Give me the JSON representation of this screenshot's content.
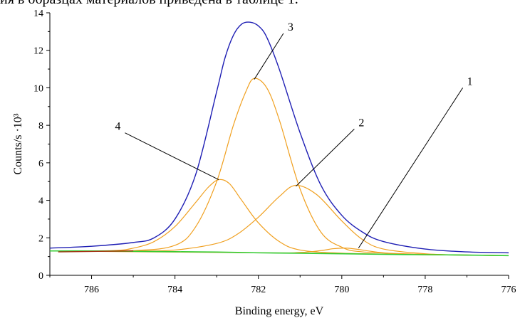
{
  "page": {
    "top_text": "ия в образцах материалов приведена в таблице 1."
  },
  "chart_data": {
    "type": "line",
    "title": "",
    "xlabel": "Binding energy, eV",
    "ylabel": "Counts/s ·10³",
    "xlim": [
      787,
      776
    ],
    "ylim": [
      0,
      14
    ],
    "x_reversed": true,
    "x_ticks": [
      "786",
      "784",
      "782",
      "780",
      "778",
      "776"
    ],
    "y_ticks": [
      "0",
      "2",
      "4",
      "6",
      "8",
      "10",
      "12",
      "14"
    ],
    "grid": false,
    "series": [
      {
        "id": "envelope",
        "name": "",
        "color": "#1f1fb4",
        "x": [
          787,
          786,
          785,
          784.5,
          784,
          783.5,
          783,
          782.8,
          782.6,
          782.4,
          782.2,
          782.0,
          781.8,
          781.5,
          781.0,
          780.5,
          780.0,
          779.5,
          779.0,
          778.0,
          777.0,
          776.0
        ],
        "y": [
          1.45,
          1.55,
          1.75,
          2.0,
          3.0,
          5.4,
          9.8,
          11.6,
          12.8,
          13.4,
          13.5,
          13.3,
          12.7,
          11.0,
          7.6,
          4.8,
          3.2,
          2.3,
          1.8,
          1.4,
          1.25,
          1.2
        ]
      },
      {
        "id": "background",
        "name": "",
        "color": "#33cc33",
        "x": [
          787,
          786,
          785,
          784,
          783,
          782,
          781,
          780,
          779,
          778,
          777,
          776
        ],
        "y": [
          1.3,
          1.3,
          1.28,
          1.26,
          1.24,
          1.2,
          1.18,
          1.15,
          1.12,
          1.1,
          1.08,
          1.05
        ]
      },
      {
        "id": "component-1",
        "name": "",
        "color": "#f0a020",
        "x": [
          787,
          782,
          781,
          780.5,
          780.2,
          779.9,
          779.6,
          779.2,
          778.5,
          777,
          776
        ],
        "y": [
          1.3,
          1.2,
          1.22,
          1.32,
          1.42,
          1.45,
          1.38,
          1.25,
          1.12,
          1.08,
          1.05
        ]
      },
      {
        "id": "component-2",
        "name": "",
        "color": "#f0a020",
        "x": [
          787,
          785,
          784,
          783,
          782.5,
          782,
          781.5,
          781.1,
          780.6,
          780,
          779.5,
          779,
          778,
          777,
          776
        ],
        "y": [
          1.3,
          1.3,
          1.35,
          1.7,
          2.2,
          3.1,
          4.2,
          4.8,
          4.3,
          2.9,
          1.9,
          1.4,
          1.15,
          1.08,
          1.05
        ]
      },
      {
        "id": "component-3",
        "name": "",
        "color": "#f0a020",
        "x": [
          787,
          785,
          784,
          783.5,
          783,
          782.6,
          782.3,
          782.1,
          781.8,
          781.5,
          781,
          780.5,
          780,
          779.5,
          778,
          776
        ],
        "y": [
          1.3,
          1.32,
          1.6,
          2.6,
          5.0,
          8.0,
          9.8,
          10.5,
          10.0,
          8.3,
          4.6,
          2.3,
          1.5,
          1.25,
          1.12,
          1.05
        ]
      },
      {
        "id": "component-4",
        "name": "",
        "color": "#f0a020",
        "x": [
          787,
          785.5,
          785,
          784.5,
          784,
          783.5,
          783.2,
          782.95,
          782.7,
          782.4,
          782,
          781.5,
          781,
          780,
          778,
          776
        ],
        "y": [
          1.3,
          1.32,
          1.45,
          1.8,
          2.6,
          3.9,
          4.7,
          5.1,
          4.9,
          4.0,
          2.8,
          1.8,
          1.35,
          1.18,
          1.1,
          1.05
        ]
      }
    ],
    "annotations": [
      {
        "id": "1",
        "text": "1",
        "from": [
          777.1,
          10.0
        ],
        "to": [
          779.6,
          1.45
        ]
      },
      {
        "id": "2",
        "text": "2",
        "from": [
          779.7,
          7.8
        ],
        "to": [
          781.1,
          4.75
        ]
      },
      {
        "id": "3",
        "text": "3",
        "from": [
          781.4,
          12.9
        ],
        "to": [
          782.1,
          10.45
        ]
      },
      {
        "id": "4",
        "text": "4",
        "from": [
          785.2,
          7.6
        ],
        "to": [
          782.95,
          5.1
        ]
      }
    ]
  }
}
